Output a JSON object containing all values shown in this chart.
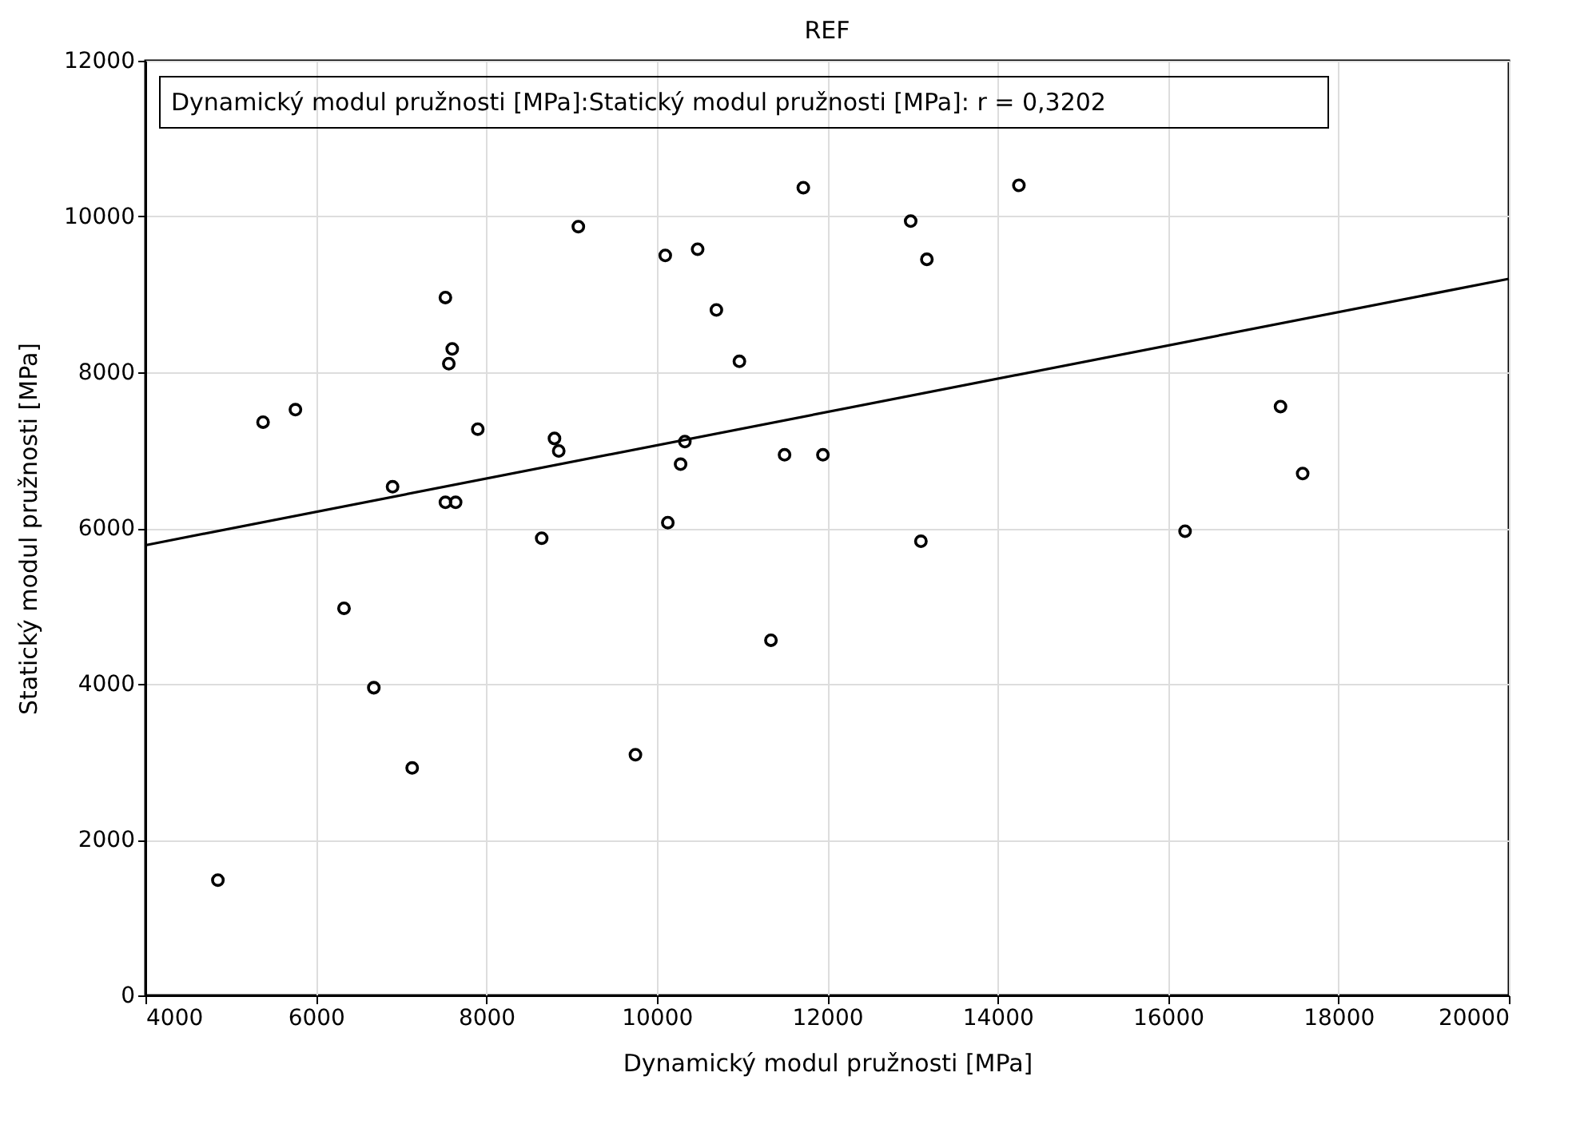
{
  "chart_data": {
    "type": "scatter",
    "title": "REF",
    "xlabel": "Dynamický modul pružnosti [MPa]",
    "ylabel": "Statický modul pružnosti [MPa]",
    "annotations": [
      "Dynamický modul pružnosti [MPa]:Statický modul pružnosti [MPa]:   r = 0,3202"
    ],
    "xlim": [
      4000,
      20000
    ],
    "xticks": [
      4000,
      6000,
      8000,
      10000,
      12000,
      14000,
      16000,
      18000,
      20000
    ],
    "ylim": [
      0,
      12000
    ],
    "yticks": [
      0,
      2000,
      4000,
      6000,
      8000,
      10000,
      12000
    ],
    "grid": true,
    "series": [
      {
        "marker": "circle",
        "color": "#000000",
        "x": [
          4850,
          5380,
          5760,
          6330,
          6680,
          6900,
          7130,
          7520,
          7520,
          7560,
          7600,
          7640,
          7900,
          8650,
          8800,
          8850,
          9080,
          9750,
          10100,
          10130,
          10280,
          10330,
          10480,
          10700,
          10970,
          11340,
          11500,
          11720,
          11950,
          12980,
          13100,
          13170,
          14250,
          16200,
          17320,
          17580
        ],
        "values": [
          1480,
          7360,
          7520,
          4970,
          3950,
          6530,
          2920,
          8960,
          6330,
          8110,
          8300,
          6330,
          7270,
          5870,
          7150,
          6990,
          9870,
          3090,
          9500,
          6070,
          6820,
          7110,
          9580,
          8800,
          8140,
          4560,
          6940,
          10370,
          6940,
          9940,
          5830,
          9450,
          10400,
          5960,
          7560,
          6700
        ]
      },
      {
        "type": "line",
        "color": "#000000",
        "line_style": "solid",
        "x": [
          4000,
          20000
        ],
        "values": [
          5780,
          9200
        ]
      }
    ]
  }
}
